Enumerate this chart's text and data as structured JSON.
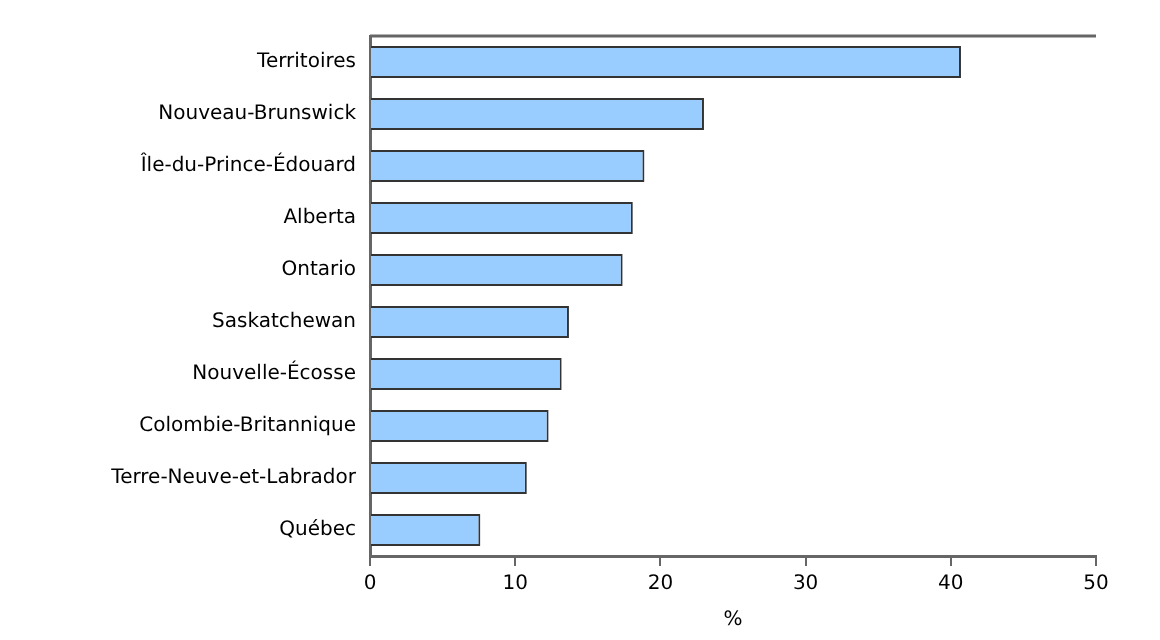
{
  "chart_data": {
    "type": "bar",
    "orientation": "horizontal",
    "xlabel": "%",
    "categories": [
      "Territoires",
      "Nouveau-Brunswick",
      "Île-du-Prince-Édouard",
      "Alberta",
      "Ontario",
      "Saskatchewan",
      "Nouvelle-Écosse",
      "Colombie-Britannique",
      "Terre-Neuve-et-Labrador",
      "Québec"
    ],
    "values": [
      40.7,
      23.0,
      18.9,
      18.1,
      17.4,
      13.7,
      13.2,
      12.3,
      10.8,
      7.6
    ],
    "color": "#99ccff",
    "xlim": [
      0,
      50
    ],
    "xticks": [
      0,
      10,
      20,
      30,
      40,
      50
    ],
    "grid": false,
    "legend": false
  }
}
